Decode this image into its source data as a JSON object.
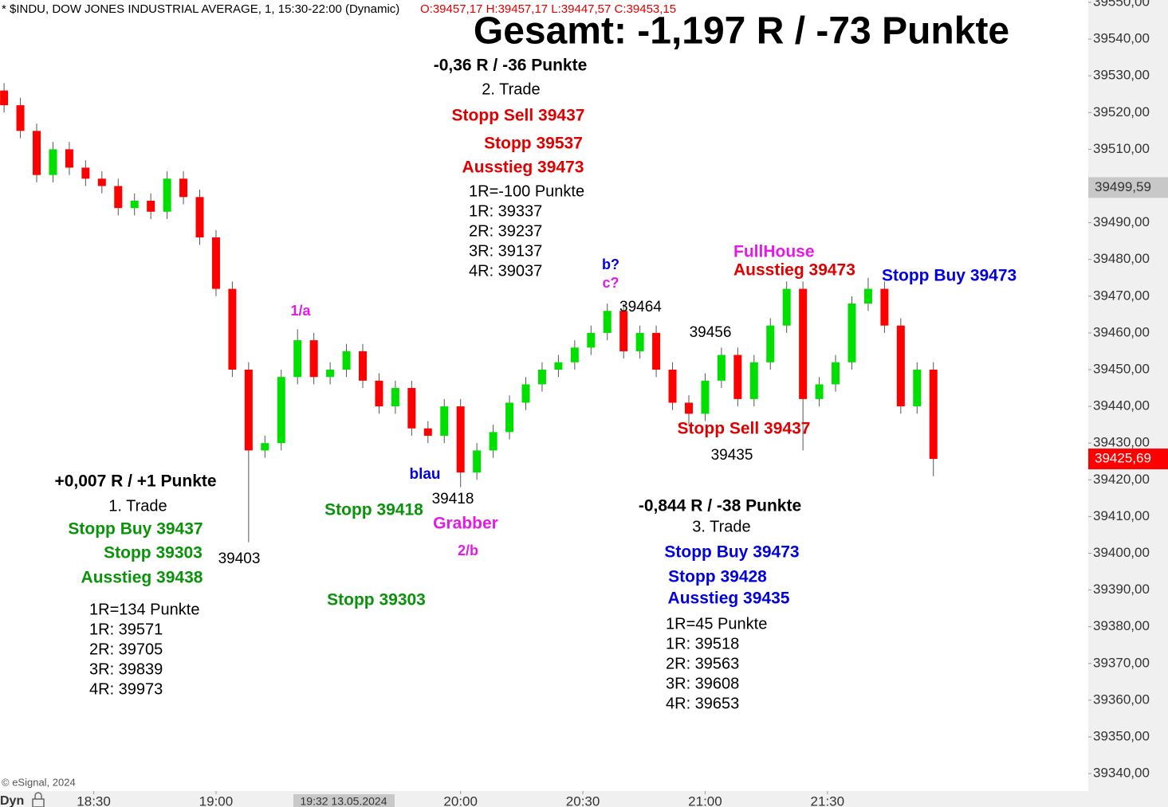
{
  "chart_data": {
    "type": "candlestick",
    "header": {
      "symbol": "* $INDU, DOW JONES INDUSTRIAL AVERAGE, 1, 15:30-22:00 (Dynamic)",
      "ohlc": "O:39457,17 H:39457,17 L:39447,57 C:39453,15"
    },
    "up_color": "#00e000",
    "down_color": "#ff0000",
    "x": [
      "18:08",
      "18:12",
      "18:16",
      "18:20",
      "18:24",
      "18:28",
      "18:32",
      "18:36",
      "18:40",
      "18:44",
      "18:48",
      "18:52",
      "18:56",
      "19:00",
      "19:04",
      "19:08",
      "19:12",
      "19:16",
      "19:20",
      "19:24",
      "19:28",
      "19:32",
      "19:36",
      "19:40",
      "19:44",
      "19:48",
      "19:52",
      "19:56",
      "20:00",
      "20:04",
      "20:08",
      "20:12",
      "20:16",
      "20:20",
      "20:24",
      "20:28",
      "20:32",
      "20:36",
      "20:40",
      "20:44",
      "20:48",
      "20:52",
      "20:56",
      "21:00",
      "21:04",
      "21:08",
      "21:12",
      "21:16",
      "21:20",
      "21:24",
      "21:28",
      "21:32",
      "21:36",
      "21:40",
      "21:44",
      "21:48",
      "21:52",
      "21:56"
    ],
    "open": [
      39526,
      39522,
      39515,
      39503,
      39510,
      39505,
      39502,
      39500,
      39494,
      39496,
      39493,
      39502,
      39497,
      39486,
      39472,
      39450,
      39428,
      39430,
      39448,
      39458,
      39448,
      39450,
      39455,
      39447,
      39440,
      39445,
      39434,
      39432,
      39440,
      39422,
      39428,
      39433,
      39441,
      39446,
      39450,
      39452,
      39456,
      39460,
      39466,
      39455,
      39460,
      39450,
      39441,
      39438,
      39447,
      39454,
      39442,
      39452,
      39462,
      39472,
      39442,
      39446,
      39452,
      39468,
      39472,
      39462,
      39440,
      39450
    ],
    "high": [
      39528,
      39524,
      39517,
      39512,
      39512,
      39507,
      39504,
      39502,
      39498,
      39498,
      39504,
      39504,
      39499,
      39488,
      39474,
      39452,
      39432,
      39450,
      39461,
      39460,
      39452,
      39457,
      39457,
      39449,
      39447,
      39447,
      39436,
      39442,
      39442,
      39430,
      39435,
      39443,
      39448,
      39452,
      39454,
      39458,
      39462,
      39468,
      39468,
      39462,
      39462,
      39452,
      39443,
      39449,
      39456,
      39456,
      39454,
      39464,
      39474,
      39474,
      39448,
      39454,
      39470,
      39475,
      39474,
      39464,
      39452,
      39452
    ],
    "low": [
      39520,
      39513,
      39501,
      39501,
      39503,
      39500,
      39498,
      39492,
      39492,
      39491,
      39491,
      39495,
      39484,
      39470,
      39448,
      39403,
      39426,
      39428,
      39446,
      39446,
      39446,
      39448,
      39445,
      39438,
      39438,
      39432,
      39430,
      39430,
      39418,
      39420,
      39426,
      39431,
      39439,
      39444,
      39448,
      39450,
      39454,
      39458,
      39453,
      39453,
      39448,
      39439,
      39435,
      39436,
      39445,
      39440,
      39440,
      39450,
      39460,
      39428,
      39440,
      39444,
      39450,
      39466,
      39460,
      39438,
      39438,
      39421
    ],
    "close": [
      39522,
      39515,
      39503,
      39510,
      39505,
      39502,
      39500,
      39494,
      39496,
      39493,
      39502,
      39497,
      39486,
      39472,
      39450,
      39428,
      39430,
      39448,
      39458,
      39448,
      39450,
      39455,
      39447,
      39440,
      39445,
      39434,
      39432,
      39440,
      39422,
      39428,
      39433,
      39441,
      39446,
      39450,
      39452,
      39456,
      39460,
      39466,
      39455,
      39460,
      39450,
      39441,
      39438,
      39447,
      39454,
      39442,
      39452,
      39462,
      39472,
      39442,
      39446,
      39452,
      39468,
      39472,
      39462,
      39440,
      39450,
      39425.69
    ],
    "xlim": [
      "18:07",
      "22:34"
    ],
    "xticks": [
      "18:30",
      "19:00",
      "20:00",
      "20:30",
      "21:00",
      "21:30"
    ],
    "cursor_label": "19:32 13.05.2024",
    "ylim": [
      39335.25,
      39550.65
    ],
    "yticks": [
      {
        "value": 39340,
        "label": "39340,00"
      },
      {
        "value": 39350,
        "label": "39350,00"
      },
      {
        "value": 39360,
        "label": "39360,00"
      },
      {
        "value": 39370,
        "label": "39370,00"
      },
      {
        "value": 39380,
        "label": "39380,00"
      },
      {
        "value": 39390,
        "label": "39390,00"
      },
      {
        "value": 39400,
        "label": "39400,00"
      },
      {
        "value": 39410,
        "label": "39410,00"
      },
      {
        "value": 39420,
        "label": "39420,00"
      },
      {
        "value": 39430,
        "label": "39430,00"
      },
      {
        "value": 39440,
        "label": "39440,00"
      },
      {
        "value": 39450,
        "label": "39450,00"
      },
      {
        "value": 39460,
        "label": "39460,00"
      },
      {
        "value": 39470,
        "label": "39470,00"
      },
      {
        "value": 39480,
        "label": "39480,00"
      },
      {
        "value": 39490,
        "label": "39490,00"
      },
      {
        "value": 39500,
        "label": "39500,00"
      },
      {
        "value": 39510,
        "label": "39510,00"
      },
      {
        "value": 39520,
        "label": "39520,00"
      },
      {
        "value": 39530,
        "label": "39530,00"
      },
      {
        "value": 39540,
        "label": "39540,00"
      },
      {
        "value": 39550,
        "label": "39550,00"
      }
    ],
    "price_markers": [
      {
        "value": 39499.59,
        "label": "39499,59",
        "color": "#c8c8c8"
      },
      {
        "value": 39425.69,
        "label": "39425,69",
        "color": "#ff0000"
      }
    ],
    "annotations": [
      {
        "text": "Gesamt: -1,197 R / -73 Punkte",
        "color": "#000000"
      },
      {
        "text": "-0,36 R / -36 Punkte",
        "color": "#000000"
      },
      {
        "text": "2. Trade",
        "color": "#000000"
      },
      {
        "text": "Stopp Sell 39437",
        "color": "#e00000"
      },
      {
        "text": "Stopp 39537",
        "color": "#e00000"
      },
      {
        "text": "Ausstieg 39473",
        "color": "#e00000"
      },
      {
        "text": "1R=-100 Punkte",
        "color": "#000000"
      },
      {
        "text": "1R: 39337",
        "color": "#000000"
      },
      {
        "text": "2R: 39237",
        "color": "#000000"
      },
      {
        "text": "3R: 39137",
        "color": "#000000"
      },
      {
        "text": "4R: 39037",
        "color": "#000000"
      },
      {
        "text": "b?",
        "color": "#0000e0"
      },
      {
        "text": "c?",
        "color": "#e619e6"
      },
      {
        "text": "39464",
        "color": "#000000"
      },
      {
        "text": "1/a",
        "color": "#e619e6"
      },
      {
        "text": "FullHouse",
        "color": "#e619e6"
      },
      {
        "text": "Ausstieg 39473",
        "color": "#e00000"
      },
      {
        "text": "Stopp Buy 39473",
        "color": "#0000e0"
      },
      {
        "text": "39456",
        "color": "#000000"
      },
      {
        "text": "Stopp Sell 39437",
        "color": "#e00000"
      },
      {
        "text": "39435",
        "color": "#000000"
      },
      {
        "text": "+0,007 R / +1 Punkte",
        "color": "#000000"
      },
      {
        "text": "1. Trade",
        "color": "#000000"
      },
      {
        "text": "Stopp Buy 39437",
        "color": "#0a930a"
      },
      {
        "text": "Stopp 39303",
        "color": "#0a930a"
      },
      {
        "text": "Ausstieg 39438",
        "color": "#0a930a"
      },
      {
        "text": "39403",
        "color": "#000000"
      },
      {
        "text": "1R=134 Punkte",
        "color": "#000000"
      },
      {
        "text": "1R: 39571",
        "color": "#000000"
      },
      {
        "text": "2R: 39705",
        "color": "#000000"
      },
      {
        "text": "3R: 39839",
        "color": "#000000"
      },
      {
        "text": "4R: 39973",
        "color": "#000000"
      },
      {
        "text": "blau",
        "color": "#0000e0"
      },
      {
        "text": "Stopp 39418",
        "color": "#0a930a"
      },
      {
        "text": "39418",
        "color": "#000000"
      },
      {
        "text": "Grabber",
        "color": "#e619e6"
      },
      {
        "text": "2/b",
        "color": "#e619e6"
      },
      {
        "text": "Stopp 39303",
        "color": "#0a930a"
      },
      {
        "text": "-0,844 R / -38 Punkte",
        "color": "#000000"
      },
      {
        "text": "3. Trade",
        "color": "#000000"
      },
      {
        "text": "Stopp Buy 39473",
        "color": "#0000e0"
      },
      {
        "text": "Stopp 39428",
        "color": "#0000e0"
      },
      {
        "text": "Ausstieg 39435",
        "color": "#0000e0"
      },
      {
        "text": "1R=45 Punkte",
        "color": "#000000"
      },
      {
        "text": "1R: 39518",
        "color": "#000000"
      },
      {
        "text": "2R: 39563",
        "color": "#000000"
      },
      {
        "text": "3R: 39608",
        "color": "#000000"
      },
      {
        "text": "4R: 39653",
        "color": "#000000"
      }
    ],
    "footer": "© eSignal, 2024",
    "corner_label": "Dyn"
  }
}
